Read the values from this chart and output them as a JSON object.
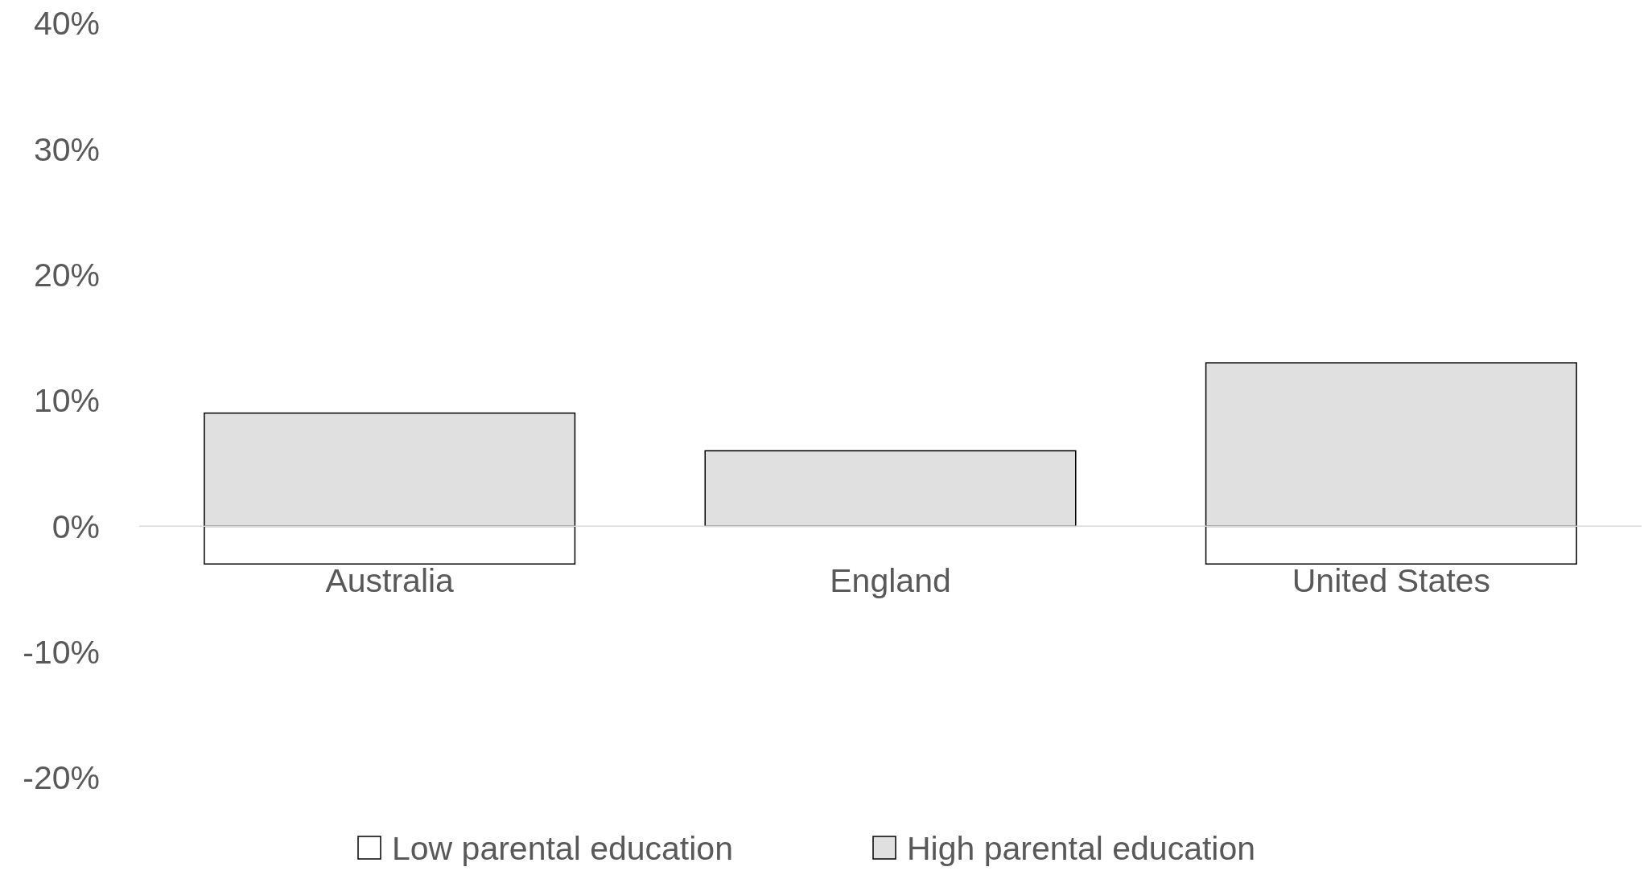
{
  "chart_data": {
    "type": "bar",
    "stacked": true,
    "categories": [
      "Australia",
      "England",
      "United States"
    ],
    "series": [
      {
        "name": "Low parental education",
        "color": "#ffffff",
        "values": [
          -3,
          0,
          -3
        ]
      },
      {
        "name": "High parental education",
        "color": "#e0e0e0",
        "values": [
          9,
          6,
          13
        ]
      }
    ],
    "ylim": [
      -20,
      40
    ],
    "yticks": [
      {
        "value": -20,
        "label": "-20%"
      },
      {
        "value": -10,
        "label": "-10%"
      },
      {
        "value": 0,
        "label": "0%"
      },
      {
        "value": 10,
        "label": "10%"
      },
      {
        "value": 20,
        "label": "20%"
      },
      {
        "value": 30,
        "label": "30%"
      },
      {
        "value": 40,
        "label": "40%"
      }
    ],
    "grid": false,
    "legend": "bottom"
  }
}
